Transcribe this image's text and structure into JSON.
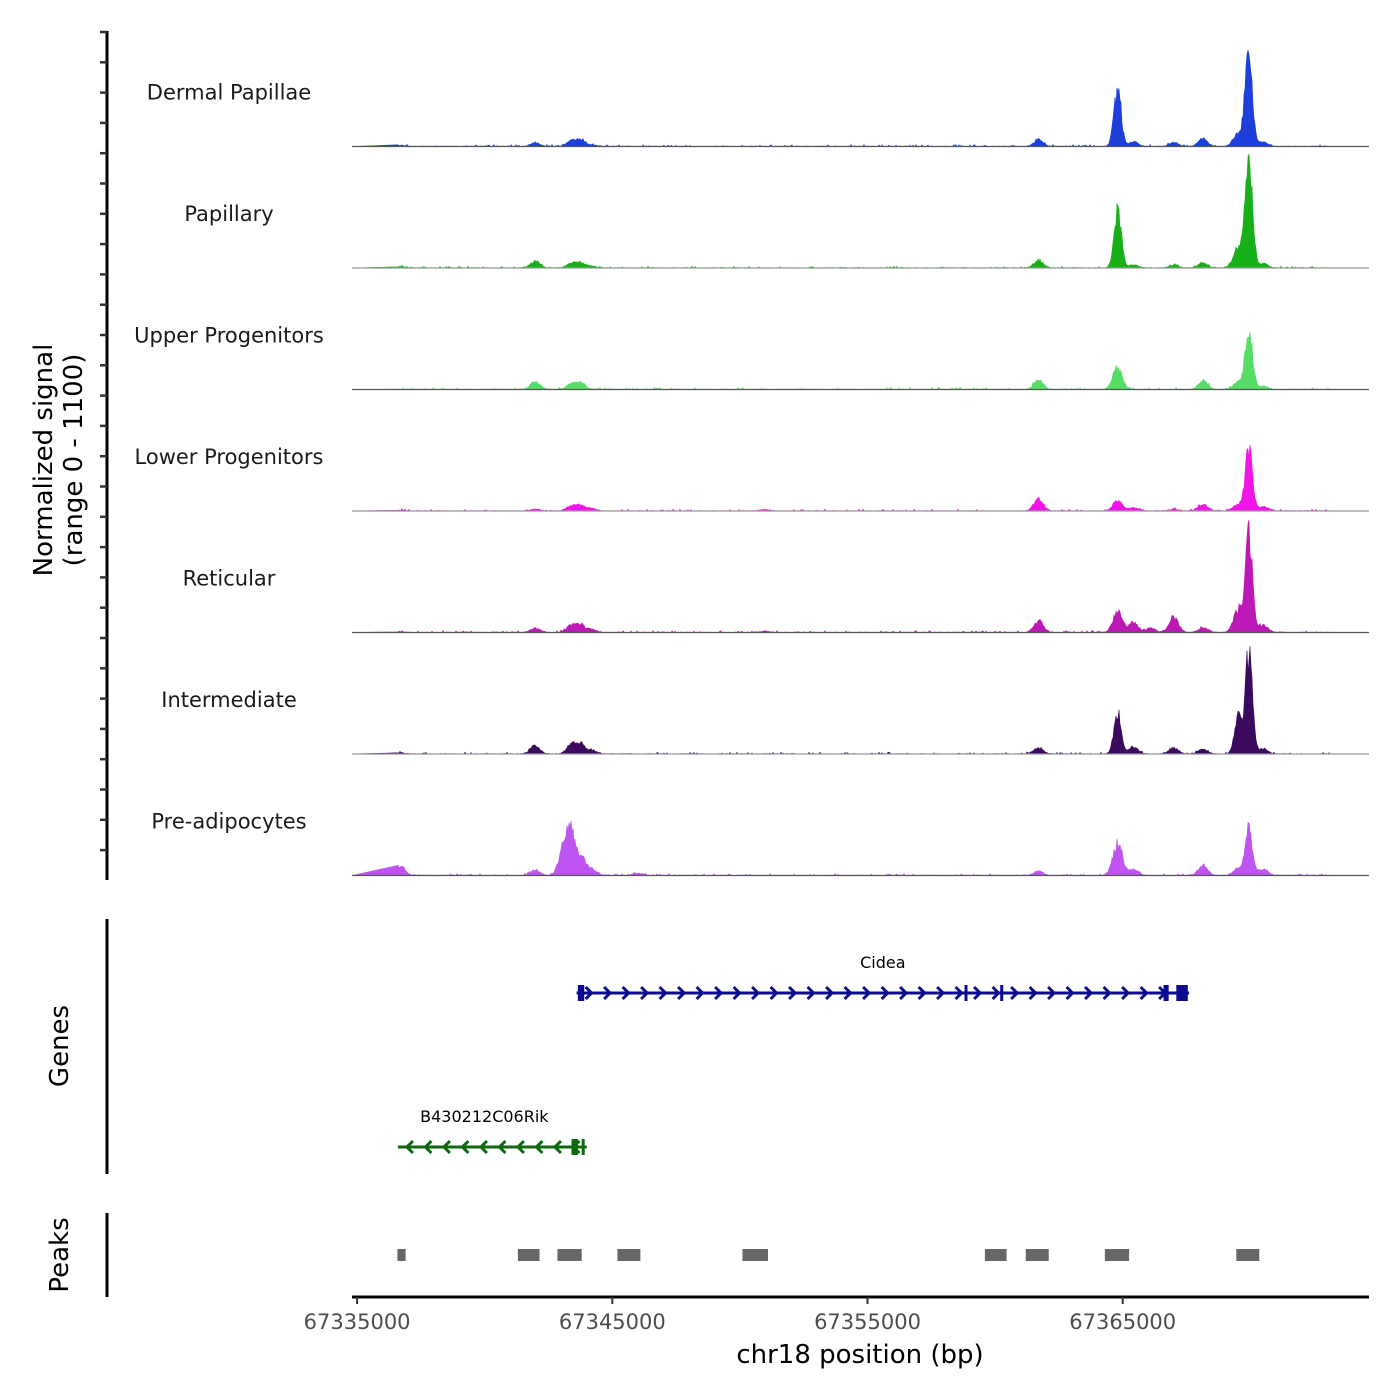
{
  "chart_data": {
    "type": "area",
    "title": "",
    "xlabel": "chr18 position (bp)",
    "ylabel": "Normalized signal\n(range 0 - 1100)",
    "ylabel_lines": [
      "Normalized signal",
      "(range 0 - 1100)"
    ],
    "ylim": [
      0,
      1100
    ],
    "xlim": [
      67334800,
      67374650
    ],
    "x_ticks": [
      67335000,
      67345000,
      67355000,
      67365000
    ],
    "x_tick_labels": [
      "67335000",
      "67345000",
      "67355000",
      "67365000"
    ],
    "grid": false,
    "legend": "none",
    "series": [
      {
        "name": "Dermal Papillae",
        "color": "#1F3FDB",
        "peaks": [
          [
            67336690,
            8
          ],
          [
            67341980,
            30
          ],
          [
            67343390,
            45
          ],
          [
            67343750,
            55
          ],
          [
            67344200,
            12
          ],
          [
            67361700,
            60
          ],
          [
            67364800,
            527
          ],
          [
            67365430,
            40
          ],
          [
            67367000,
            35
          ],
          [
            67368140,
            70
          ],
          [
            67369510,
            120
          ],
          [
            67369940,
            900
          ],
          [
            67370500,
            40
          ]
        ]
      },
      {
        "name": "Papillary",
        "color": "#18B018",
        "peaks": [
          [
            67336690,
            12
          ],
          [
            67341980,
            60
          ],
          [
            67343390,
            40
          ],
          [
            67343750,
            45
          ],
          [
            67344200,
            15
          ],
          [
            67361700,
            70
          ],
          [
            67364800,
            520
          ],
          [
            67365430,
            30
          ],
          [
            67367000,
            25
          ],
          [
            67368140,
            45
          ],
          [
            67369510,
            180
          ],
          [
            67369940,
            980
          ],
          [
            67370500,
            40
          ]
        ]
      },
      {
        "name": "Upper Progenitors",
        "color": "#55DD66",
        "peaks": [
          [
            67341980,
            70
          ],
          [
            67343390,
            45
          ],
          [
            67343750,
            60
          ],
          [
            67361700,
            85
          ],
          [
            67364800,
            200
          ],
          [
            67368140,
            80
          ],
          [
            67369510,
            60
          ],
          [
            67369940,
            580
          ],
          [
            67370500,
            30
          ]
        ]
      },
      {
        "name": "Lower Progenitors",
        "color": "#F015E6",
        "peaks": [
          [
            67336690,
            5
          ],
          [
            67341980,
            15
          ],
          [
            67343390,
            40
          ],
          [
            67343750,
            50
          ],
          [
            67344200,
            20
          ],
          [
            67351000,
            12
          ],
          [
            67361700,
            110
          ],
          [
            67364800,
            100
          ],
          [
            67365430,
            30
          ],
          [
            67367000,
            15
          ],
          [
            67368140,
            60
          ],
          [
            67369510,
            55
          ],
          [
            67369940,
            540
          ],
          [
            67370500,
            40
          ]
        ]
      },
      {
        "name": "Reticular",
        "color": "#BC18B5",
        "peaks": [
          [
            67336690,
            5
          ],
          [
            67341980,
            40
          ],
          [
            67343390,
            60
          ],
          [
            67343750,
            65
          ],
          [
            67344200,
            25
          ],
          [
            67351000,
            10
          ],
          [
            67361700,
            110
          ],
          [
            67364800,
            190
          ],
          [
            67365430,
            90
          ],
          [
            67366100,
            40
          ],
          [
            67367000,
            140
          ],
          [
            67368140,
            40
          ],
          [
            67369510,
            200
          ],
          [
            67369940,
            860
          ],
          [
            67370500,
            70
          ]
        ]
      },
      {
        "name": "Intermediate",
        "color": "#3B0A5F",
        "peaks": [
          [
            67336690,
            8
          ],
          [
            67341980,
            80
          ],
          [
            67343390,
            80
          ],
          [
            67343750,
            90
          ],
          [
            67344200,
            30
          ],
          [
            67361700,
            55
          ],
          [
            67364800,
            390
          ],
          [
            67365430,
            60
          ],
          [
            67367000,
            55
          ],
          [
            67368140,
            40
          ],
          [
            67369510,
            330
          ],
          [
            67369940,
            920
          ],
          [
            67370500,
            45
          ]
        ]
      },
      {
        "name": "Pre-adipocytes",
        "color": "#BF55F0",
        "peaks": [
          [
            67336690,
            90
          ],
          [
            67341980,
            50
          ],
          [
            67343100,
            280
          ],
          [
            67343390,
            360
          ],
          [
            67343750,
            180
          ],
          [
            67344200,
            60
          ],
          [
            67346000,
            20
          ],
          [
            67361700,
            40
          ],
          [
            67364800,
            290
          ],
          [
            67365430,
            60
          ],
          [
            67368140,
            90
          ],
          [
            67369510,
            60
          ],
          [
            67369940,
            420
          ],
          [
            67370500,
            60
          ]
        ]
      }
    ],
    "genes": [
      {
        "name": "Cidea",
        "strand": "+",
        "color": "#0B0B8F",
        "start": 67343600,
        "end": 67367600,
        "exons": [
          [
            67343650,
            67343900
          ],
          [
            67358800,
            67358850
          ],
          [
            67360200,
            67360250
          ],
          [
            67366600,
            67366800
          ],
          [
            67367100,
            67367550
          ]
        ]
      },
      {
        "name": "B430212C06Rik",
        "strand": "-",
        "color": "#0C6A0C",
        "start": 67336600,
        "end": 67344000,
        "exons": [
          [
            67343400,
            67343650
          ],
          [
            67343800,
            67343850
          ]
        ]
      }
    ],
    "peaks_track": {
      "color": "#666666",
      "regions": [
        [
          67336580,
          67336900
        ],
        [
          67341300,
          67342150
        ],
        [
          67342850,
          67343800
        ],
        [
          67345200,
          67346100
        ],
        [
          67350100,
          67351100
        ],
        [
          67359600,
          67360450
        ],
        [
          67361200,
          67362100
        ],
        [
          67364300,
          67365250
        ],
        [
          67369450,
          67370350
        ]
      ]
    },
    "panel_labels": [
      "Genes",
      "Peaks"
    ]
  }
}
